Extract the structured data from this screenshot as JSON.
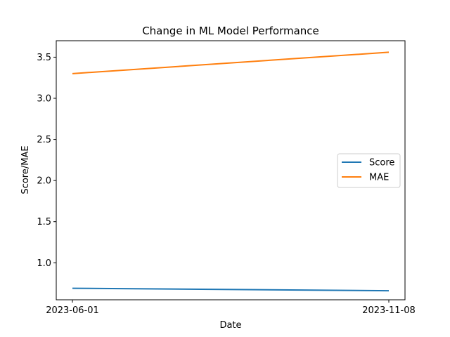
{
  "chart_data": {
    "type": "line",
    "title": "Change in ML Model Performance",
    "xlabel": "Date",
    "ylabel": "Score/MAE",
    "x": [
      "2023-06-01",
      "2023-11-08"
    ],
    "xticks": [
      "2023-06-01",
      "2023-11-08"
    ],
    "ylim": [
      0.55,
      3.7
    ],
    "yticks": [
      1.0,
      1.5,
      2.0,
      2.5,
      3.0,
      3.5
    ],
    "ytick_labels": [
      "1.0",
      "1.5",
      "2.0",
      "2.5",
      "3.0",
      "3.5"
    ],
    "grid": false,
    "legend_position": "center-right",
    "series": [
      {
        "name": "Score",
        "color": "#1f77b4",
        "values": [
          0.69,
          0.66
        ]
      },
      {
        "name": "MAE",
        "color": "#ff7f0e",
        "values": [
          3.3,
          3.56
        ]
      }
    ]
  }
}
